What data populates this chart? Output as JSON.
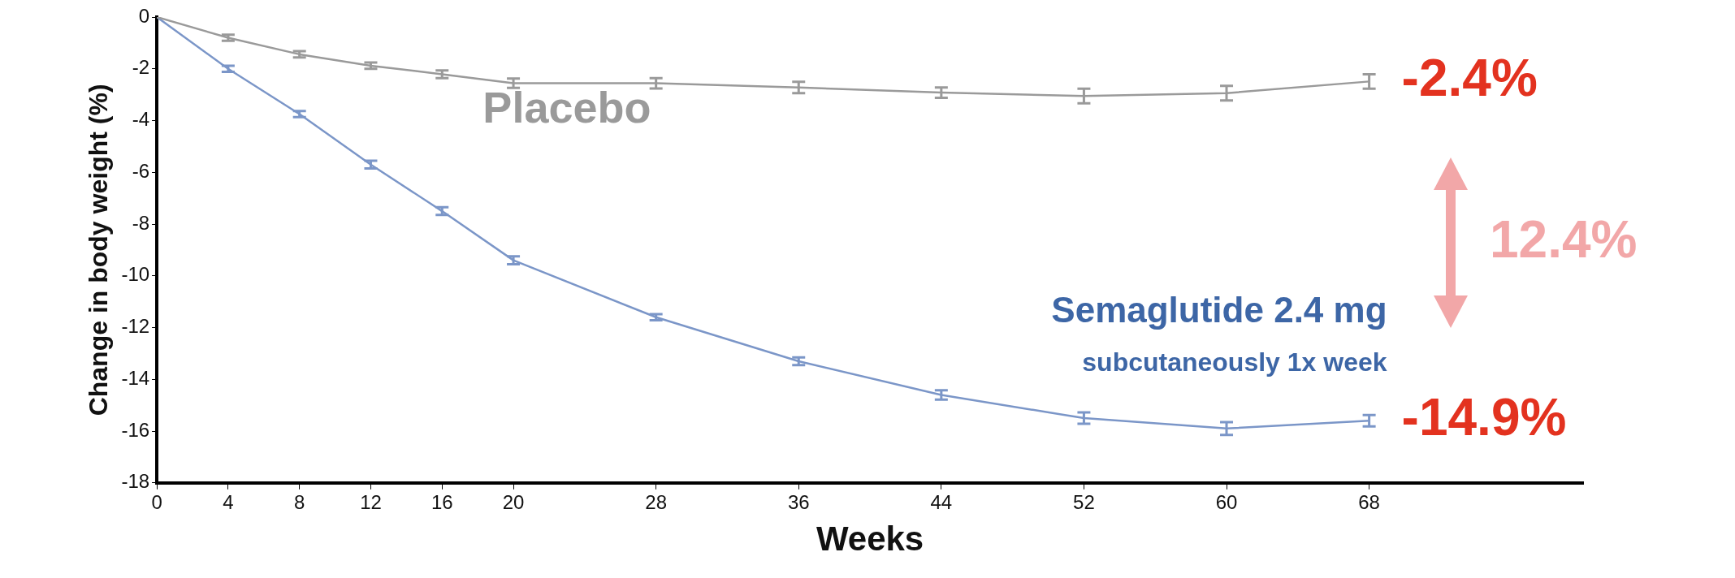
{
  "chart_data": {
    "type": "line",
    "xlabel": "Weeks",
    "ylabel": "Change in body weight (%)",
    "xlim": [
      0,
      80
    ],
    "xticks": [
      0,
      4,
      8,
      12,
      16,
      20,
      28,
      36,
      44,
      52,
      60,
      68
    ],
    "ylim": [
      -18,
      0
    ],
    "yticks": [
      0,
      -2,
      -4,
      -6,
      -8,
      -10,
      -12,
      -14,
      -16,
      -18
    ],
    "grid": false,
    "legend": false,
    "line_style": "solid",
    "x": [
      0,
      4,
      8,
      12,
      16,
      20,
      28,
      36,
      44,
      52,
      60,
      68
    ],
    "series": [
      {
        "name": "Placebo",
        "color": "#9a9a9a",
        "values": [
          0,
          -0.8,
          -1.44,
          -1.88,
          -2.21,
          -2.56,
          -2.56,
          -2.72,
          -2.92,
          -3.05,
          -2.94,
          -2.49
        ],
        "errors": [
          null,
          0.12,
          0.12,
          0.12,
          0.15,
          0.18,
          0.2,
          0.22,
          0.2,
          0.28,
          0.28,
          0.28
        ]
      },
      {
        "name": "Semaglutide 2.4 mg",
        "color": "#7b96c8",
        "values": [
          0,
          -2.0,
          -3.75,
          -5.7,
          -7.5,
          -9.4,
          -11.6,
          -13.3,
          -14.6,
          -15.5,
          -15.9,
          -15.6
        ],
        "errors": [
          null,
          0.12,
          0.12,
          0.15,
          0.15,
          0.15,
          0.12,
          0.15,
          0.18,
          0.22,
          0.25,
          0.22
        ]
      }
    ],
    "annotations": [
      {
        "text": "-2.4%",
        "x": 68,
        "y": -2.49
      },
      {
        "text": "-14.9%",
        "x": 68,
        "y": -15.6
      },
      "12.4%",
      "subcutaneously 1x week"
    ]
  }
}
